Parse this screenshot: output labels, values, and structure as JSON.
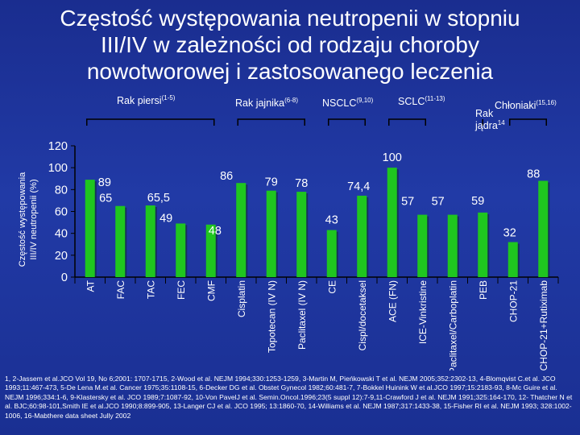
{
  "title_lines": [
    "Częstość występowania neutropenii w stopniu",
    "III/IV w zależności od rodzaju choroby",
    "nowotworowej i zastosowanego leczenia"
  ],
  "colors": {
    "background": "#1f37a0",
    "bar": "#1fc61f",
    "bar_shadow": "#0b2a10",
    "text": "#ffffff",
    "plot_border": "#000000"
  },
  "chart_data": {
    "type": "bar",
    "title": "Częstość występowania neutropenii w stopniu III/IV w zależności od rodzaju choroby nowotworowej i zastosowanego leczenia",
    "ylabel_lines": [
      "Częstość występowania",
      "III/IV neutropenii (%)"
    ],
    "xlabel": "",
    "ylim": [
      0,
      120
    ],
    "yticks": [
      0,
      20,
      40,
      60,
      80,
      100,
      120
    ],
    "grid": false,
    "categories": [
      "AT",
      "FAC",
      "TAC",
      "FEC",
      "CMF",
      "Cisplatin",
      "Topotecan (IV N)",
      "Paclitaxel (IV N)",
      "CE",
      "Cispl/docetaksel",
      "ACE (FN)",
      "ICE-Vinkristine",
      "Paclitaxel/Carboplatin",
      "PEB",
      "CHOP-21",
      "CHOP-21+Rutiximab"
    ],
    "values": [
      89,
      65,
      65.5,
      49,
      48,
      86,
      79,
      78,
      43,
      74.4,
      100,
      57,
      57,
      59,
      32,
      88
    ],
    "value_labels": [
      "89",
      "65",
      "65,5",
      "49",
      "48",
      "86",
      "79",
      "78",
      "43",
      "74,4",
      "100",
      "57",
      "57",
      "59",
      "32",
      "88"
    ],
    "disease_groups": [
      {
        "label": "Rak piersi",
        "sup": "(1-5)",
        "from": 0,
        "to": 4
      },
      {
        "label": "Rak jajnika",
        "sup": "(6-8)",
        "from": 5,
        "to": 7
      },
      {
        "label": "NSCLC",
        "sup": "(9,10)",
        "from": 8,
        "to": 9
      },
      {
        "label": "SCLC",
        "sup": "(11-13)",
        "from": 10,
        "to": 11
      },
      {
        "label_lines": [
          "Rak",
          "jądra"
        ],
        "sup": "14",
        "from": 13,
        "to": 13
      },
      {
        "label": "Chłoniaki",
        "sup": "(15,16)",
        "from": 14,
        "to": 15
      }
    ]
  },
  "references": "1, 2-Jassem et al.JCO Vol 19, No 6;2001: 1707-1715, 2-Wood et al. NEJM 1994;330:1253-1259, 3-Martin M, Pieńkowski T et al. NEJM 2005;352:2302-13, 4-Blomqvist C.et al. JCO 1993;11:467-473, 5-De Lena M.et al. Cancer 1975;35:1108-15, 6-Decker DG et al. Obstet Gynecol 1982;60:481-7, 7-Bokkel Huinink W et al.JCO 1997;15:2183-93, 8-Mc Guire et al. NEJM 1996;334:1-6, 9-Klastersky et al. JCO 1989;7:1087-92, 10-Von PavelJ et al. Semin.Oncol.1996;23(5 suppl 12):7-9,11-Crawford J et al. NEJM 1991;325:164-170, 12- Thatcher N et al. BJC;60:98-101,Smith IE et al.JCO 1990;8:899-905, 13-Langer CJ et al. JCO 1995; 13:1860-70, 14-Williams et al. NEJM 1987;317:1433-38, 15-Fisher RI et al. NEJM 1993; 328:1002-1006, 16-Mabthere data sheet Jully 2002"
}
